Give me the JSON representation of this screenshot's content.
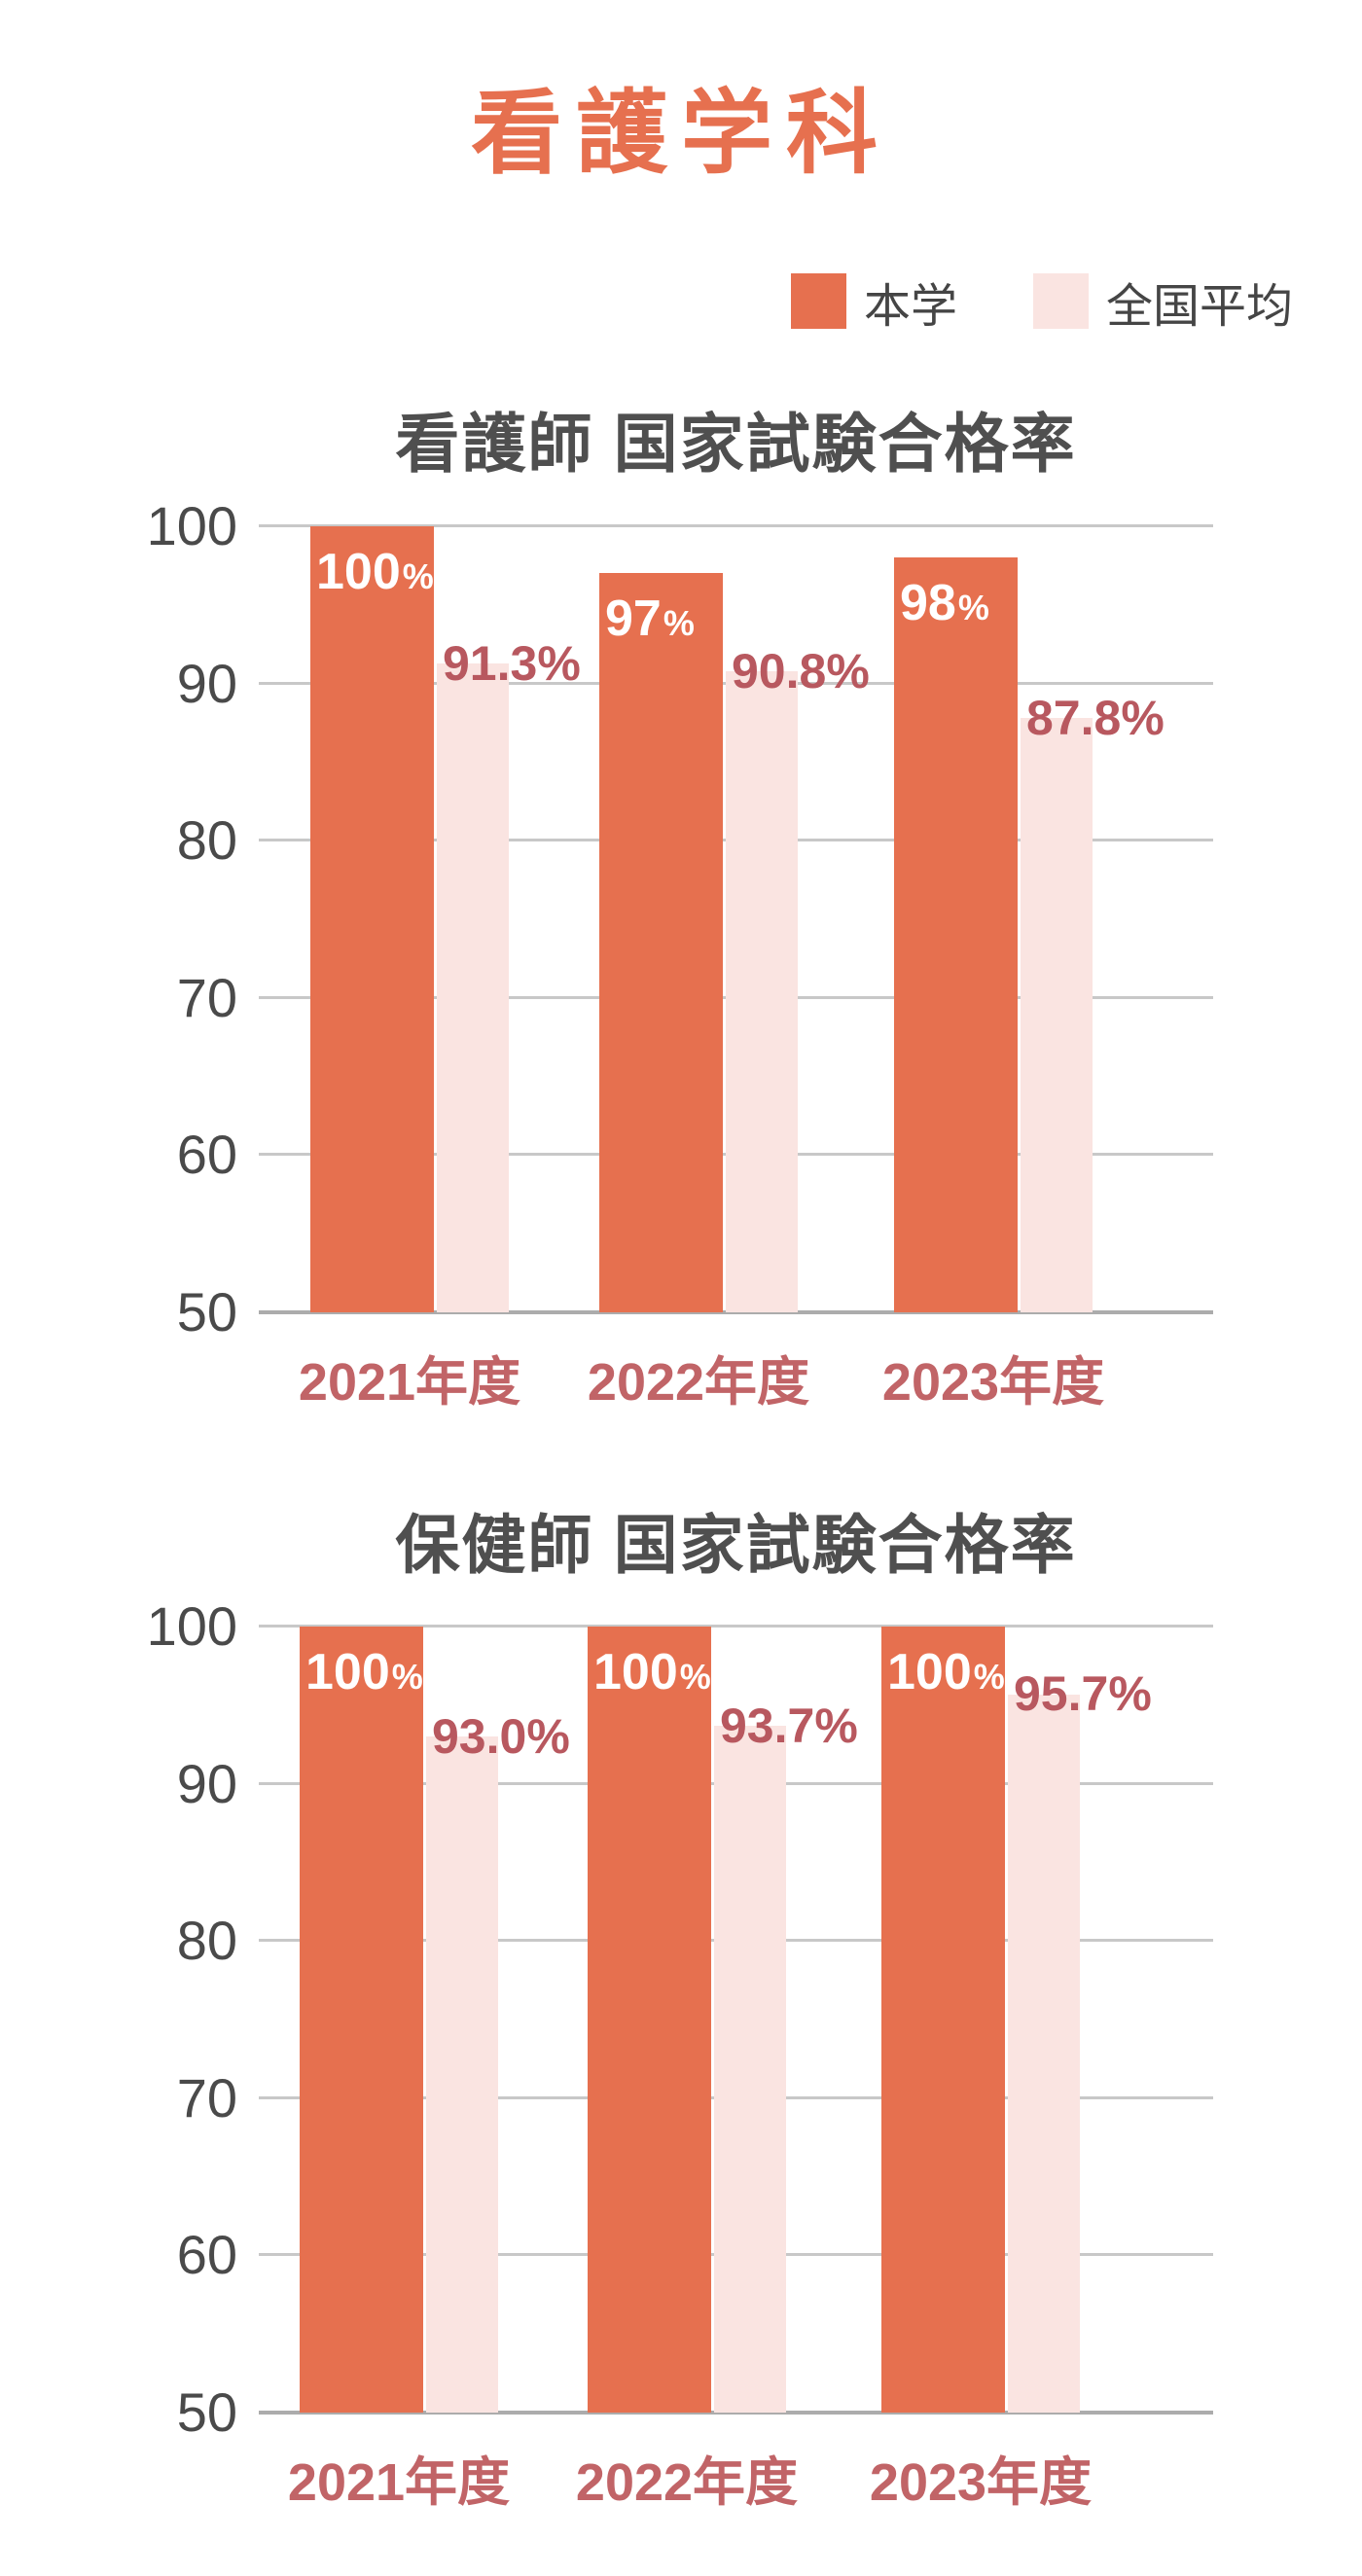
{
  "page": {
    "title": "看護学科"
  },
  "legend": {
    "items": [
      {
        "label": "本学",
        "color": "#E6704F"
      },
      {
        "label": "全国平均",
        "color": "#FAE4E1"
      }
    ]
  },
  "colors": {
    "accent_orange": "#E6704F",
    "accent_pink": "#FAE4E1",
    "data_label_rose": "#B8585F",
    "axis_label_rose": "#C16467",
    "tick_gray": "#4A4A4A",
    "title_gray": "#4F4F4F",
    "gridline": "#C8C8C8",
    "baseline": "#ACACAC",
    "bar_value_text": "#FFFFFF"
  },
  "chart_data": [
    {
      "type": "bar",
      "title": "看護師 国家試験合格率",
      "categories": [
        "2021年度",
        "2022年度",
        "2023年度"
      ],
      "series": [
        {
          "name": "本学",
          "color": "#E6704F",
          "values": [
            100,
            97,
            98
          ],
          "labels": [
            "100%",
            "97%",
            "98%"
          ]
        },
        {
          "name": "全国平均",
          "color": "#FAE4E1",
          "values": [
            91.3,
            90.8,
            87.8
          ],
          "labels": [
            "91.3%",
            "90.8%",
            "87.8%"
          ]
        }
      ],
      "xlabel": "",
      "ylabel": "",
      "ylim": [
        50,
        100
      ],
      "yticks": [
        100,
        90,
        80,
        70,
        60,
        50
      ],
      "grid": true,
      "legend_position": "top-right"
    },
    {
      "type": "bar",
      "title": "保健師 国家試験合格率",
      "categories": [
        "2021年度",
        "2022年度",
        "2023年度"
      ],
      "series": [
        {
          "name": "本学",
          "color": "#E6704F",
          "values": [
            100,
            100,
            100
          ],
          "labels": [
            "100%",
            "100%",
            "100%"
          ]
        },
        {
          "name": "全国平均",
          "color": "#FAE4E1",
          "values": [
            93.0,
            93.7,
            95.7
          ],
          "labels": [
            "93.0%",
            "93.7%",
            "95.7%"
          ]
        }
      ],
      "xlabel": "",
      "ylabel": "",
      "ylim": [
        50,
        100
      ],
      "yticks": [
        100,
        90,
        80,
        70,
        60,
        50
      ],
      "grid": true,
      "legend_position": "top-right"
    }
  ]
}
